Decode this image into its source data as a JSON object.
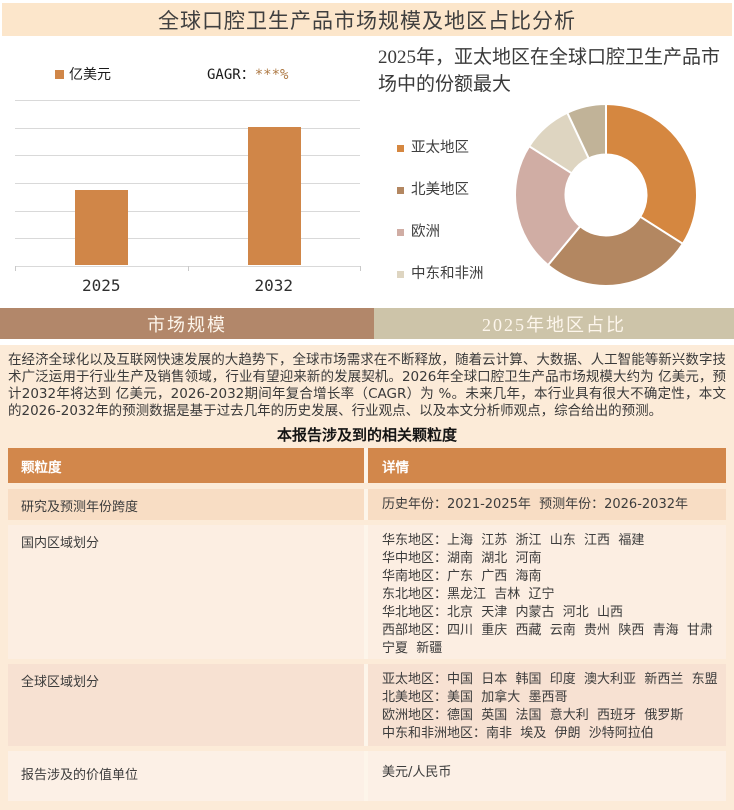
{
  "page": {
    "title": "全球口腔卫生产品市场规模及地区占比分析"
  },
  "tabs": [
    {
      "label": "市场规模",
      "active": true
    },
    {
      "label": "2025年地区占比",
      "active": false
    }
  ],
  "colors": {
    "title_bar_bg": "#fce6cb",
    "accent_orange": "#d08648",
    "table_header_bg": "#d2874b",
    "tab_left_bg": "#b2876a",
    "tab_right_bg": "#cdc4a9",
    "section_bg": "#fcebd8",
    "gridline": "#d9d9d9",
    "cagr_stars": "#ad7843"
  },
  "chart_data": [
    {
      "type": "bar",
      "title": "市场规模",
      "legend": [
        "亿美元"
      ],
      "annotation_label": "GAGR：",
      "annotation_value": "***%",
      "categories": [
        "2025",
        "2032"
      ],
      "values": [
        2.7,
        5
      ],
      "ylim": [
        0,
        6
      ],
      "grid": true,
      "y_tick_labels_visible": false,
      "bar_color": "#d08648"
    },
    {
      "type": "pie",
      "donut": true,
      "title": "2025年，亚太地区在全球口腔卫生产品市场中的份额最大",
      "labels": [
        "亚太地区",
        "北美地区",
        "欧洲",
        "中东和非洲",
        ""
      ],
      "values": [
        34,
        27,
        23,
        9,
        7
      ],
      "colors": [
        "#d58740",
        "#b38761",
        "#d0ada4",
        "#ded5c1",
        "#c1b398"
      ],
      "legend_position": "left"
    }
  ],
  "paragraph": "在经济全球化以及互联网快速发展的大趋势下，全球市场需求在不断释放，随着云计算、大数据、人工智能等新兴数字技术广泛运用于行业生产及销售领域，行业有望迎来新的发展契机。2026年全球口腔卫生产品市场规模大约为 亿美元，预计2032年将达到 亿美元，2026-2032期间年复合增长率（CAGR）为 %。未来几年，本行业具有很大不确定性，本文的2026-2032年的预测数据是基于过去几年的历史发展、行业观点、以及本文分析师观点，综合给出的预测。",
  "table": {
    "title": "本报告涉及到的相关颗粒度",
    "headers": [
      "颗粒度",
      "详情"
    ],
    "rows": [
      {
        "label": "研究及预测年份跨度",
        "lines": [
          "历史年份：2021-2025年  预测年份：2026-2032年"
        ]
      },
      {
        "label": "国内区域划分",
        "lines": [
          "华东地区：上海  江苏  浙江  山东  江西  福建",
          "华中地区：湖南  湖北  河南",
          "华南地区：广东  广西  海南",
          "东北地区：黑龙江  吉林  辽宁",
          "华北地区：北京  天津  内蒙古  河北  山西",
          "西部地区：四川  重庆  西藏  云南  贵州  陕西  青海  甘肃  宁夏  新疆"
        ]
      },
      {
        "label": "全球区域划分",
        "lines": [
          "亚太地区：中国  日本  韩国  印度  澳大利亚  新西兰  东盟",
          "北美地区：美国  加拿大  墨西哥",
          "欧洲地区：德国  英国  法国  意大利  西班牙  俄罗斯",
          "中东和非洲地区：南非  埃及  伊朗  沙特阿拉伯"
        ]
      },
      {
        "label": "报告涉及的价值单位",
        "lines": [
          "美元/人民币"
        ]
      }
    ]
  }
}
